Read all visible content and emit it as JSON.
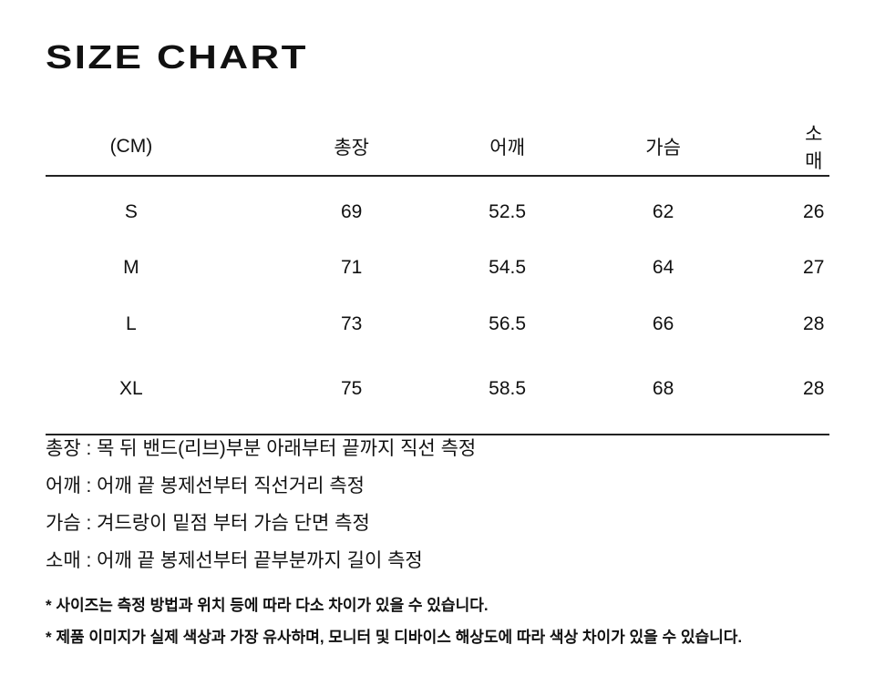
{
  "header": {
    "title": "SIZE CHART"
  },
  "table": {
    "columns": [
      "(CM)",
      "총장",
      "어깨",
      "가슴",
      "소매"
    ],
    "rows": [
      [
        "S",
        69,
        52.5,
        62,
        26
      ],
      [
        "M",
        71,
        54.5,
        64,
        27
      ],
      [
        "L",
        73,
        56.5,
        66,
        28
      ],
      [
        "XL",
        75,
        58.5,
        68,
        28
      ]
    ]
  },
  "notes": [
    "총장 : 목 뒤 밴드(리브)부분 아래부터 끝까지 직선 측정",
    "어깨 : 어깨 끝 봉제선부터 직선거리 측정",
    "가슴 : 겨드랑이 밑점 부터 가슴 단면 측정",
    "소매 : 어깨 끝 봉제선부터 끝부분까지 길이 측정"
  ],
  "footnotes": [
    "* 사이즈는 측정 방법과 위치 등에 따라 다소 차이가 있을 수 있습니다.",
    "* 제품 이미지가 실제 색상과 가장 유사하며, 모니터 및 디바이스 해상도에 따라 색상 차이가 있을 수 있습니다."
  ]
}
